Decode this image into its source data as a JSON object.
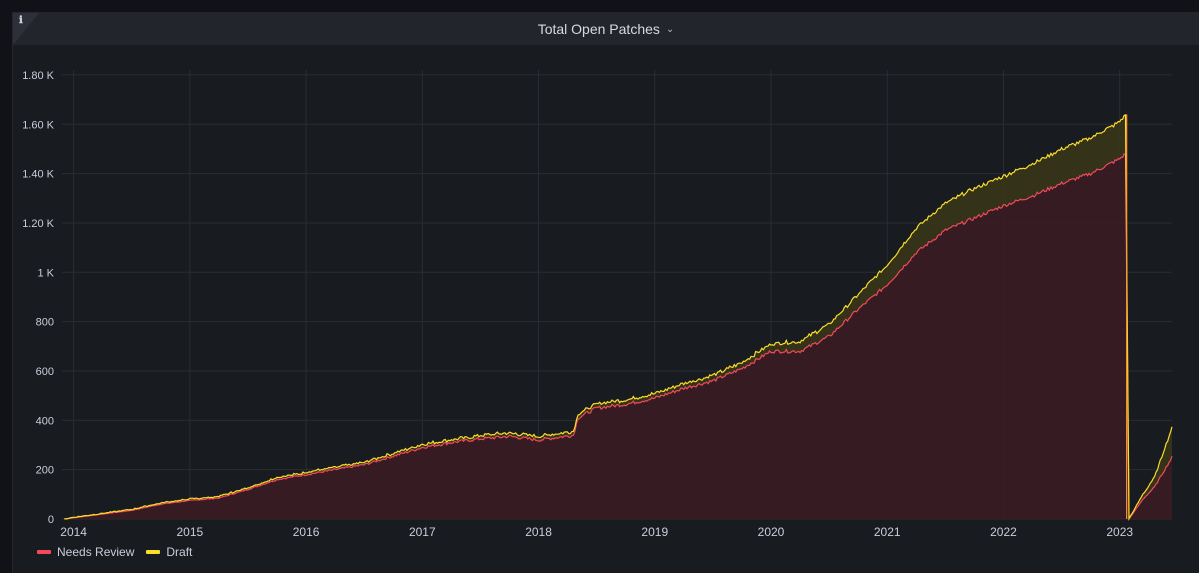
{
  "panel": {
    "title": "Total Open Patches",
    "info_icon": "ℹ",
    "chevron": "⌄"
  },
  "legend": {
    "items": [
      {
        "label": "Needs Review",
        "color": "#f2495c"
      },
      {
        "label": "Draft",
        "color": "#fade2a"
      }
    ]
  },
  "chart_data": {
    "type": "area",
    "x_axis": {
      "tick_labels": [
        "2014",
        "2015",
        "2016",
        "2017",
        "2018",
        "2019",
        "2020",
        "2021",
        "2022",
        "2023"
      ],
      "range": [
        2013.9,
        2023.45
      ]
    },
    "y_axis": {
      "tick_labels": [
        "0",
        "200",
        "400",
        "600",
        "800",
        "1 K",
        "1.20 K",
        "1.40 K",
        "1.60 K",
        "1.80 K"
      ],
      "tick_values": [
        0,
        200,
        400,
        600,
        800,
        1000,
        1200,
        1400,
        1600,
        1800
      ],
      "range": [
        0,
        1820
      ]
    },
    "grid": true,
    "legend_position": "bottom-left",
    "stacked": true,
    "x": [
      2013.92,
      2014.0,
      2014.25,
      2014.5,
      2014.75,
      2015.0,
      2015.25,
      2015.5,
      2015.75,
      2016.0,
      2016.25,
      2016.5,
      2016.75,
      2017.0,
      2017.25,
      2017.5,
      2017.75,
      2018.0,
      2018.3,
      2018.34,
      2018.5,
      2018.75,
      2019.0,
      2019.25,
      2019.5,
      2019.75,
      2020.0,
      2020.25,
      2020.5,
      2020.75,
      2021.0,
      2021.25,
      2021.5,
      2021.75,
      2022.0,
      2022.25,
      2022.5,
      2022.75,
      2023.0,
      2023.05,
      2023.08,
      2023.2,
      2023.3,
      2023.45
    ],
    "series": [
      {
        "name": "Needs Review",
        "color": "#f2495c",
        "values": [
          0,
          5,
          20,
          35,
          60,
          75,
          85,
          120,
          160,
          180,
          200,
          220,
          255,
          290,
          310,
          325,
          335,
          320,
          340,
          410,
          450,
          465,
          490,
          530,
          560,
          610,
          680,
          680,
          740,
          850,
          950,
          1080,
          1170,
          1220,
          1270,
          1310,
          1360,
          1400,
          1460,
          1480,
          0,
          80,
          130,
          250
        ]
      },
      {
        "name": "Draft",
        "values": [
          0,
          2,
          3,
          4,
          5,
          6,
          6,
          7,
          8,
          9,
          10,
          10,
          11,
          12,
          12,
          13,
          14,
          15,
          15,
          16,
          17,
          18,
          19,
          20,
          22,
          25,
          30,
          40,
          50,
          60,
          80,
          100,
          110,
          120,
          120,
          130,
          140,
          145,
          150,
          160,
          0,
          20,
          40,
          120
        ]
      }
    ]
  }
}
